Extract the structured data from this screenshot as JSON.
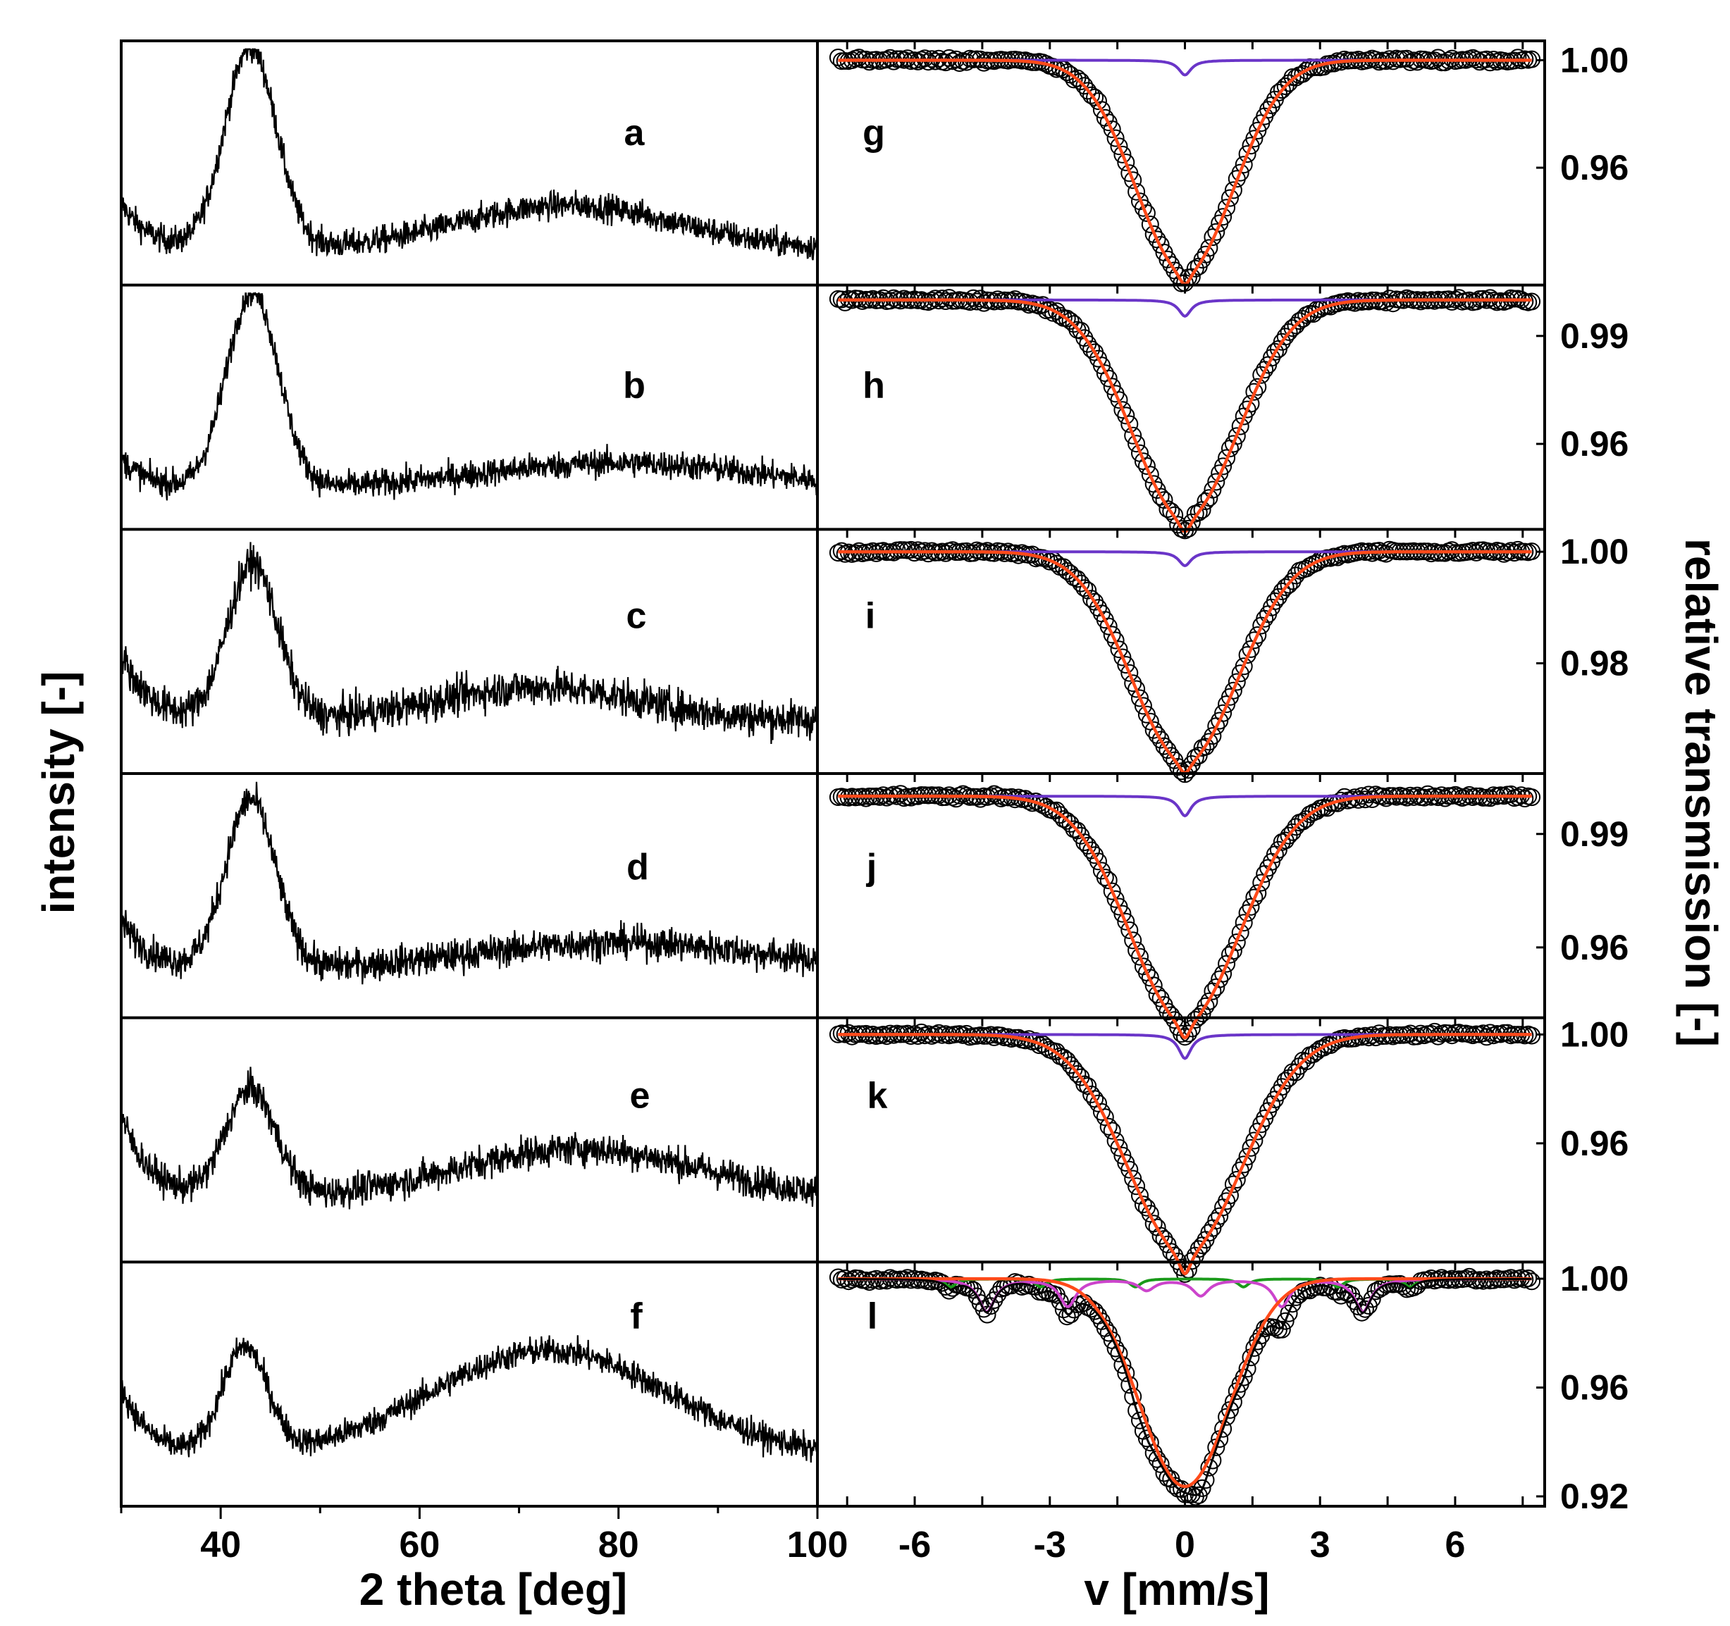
{
  "chart_data": [
    {
      "type": "line",
      "title": "",
      "xlabel": "2 theta [deg]",
      "ylabel": "intensity [-]",
      "xlim": [
        30,
        100
      ],
      "xticks": [
        40,
        60,
        80,
        100
      ],
      "yticks": [],
      "grid": false,
      "legend": "none",
      "series": [
        {
          "name": "a",
          "peak_x": 43,
          "peak_height": 1.0,
          "peak_width": 2.6,
          "start_level": 0.33,
          "base_level": 0.12,
          "bump_x": 75,
          "bump_height": 0.2,
          "bump_width": 11,
          "noise": 0.06
        },
        {
          "name": "b",
          "peak_x": 43.2,
          "peak_height": 1.0,
          "peak_width": 2.6,
          "start_level": 0.28,
          "base_level": 0.14,
          "bump_x": 80,
          "bump_height": 0.12,
          "bump_width": 14,
          "noise": 0.06
        },
        {
          "name": "c",
          "peak_x": 43.2,
          "peak_height": 0.86,
          "peak_width": 2.5,
          "start_level": 0.5,
          "base_level": 0.2,
          "bump_x": 72,
          "bump_height": 0.15,
          "bump_width": 10,
          "noise": 0.08
        },
        {
          "name": "d",
          "peak_x": 43,
          "peak_height": 0.9,
          "peak_width": 2.5,
          "start_level": 0.4,
          "base_level": 0.18,
          "bump_x": 80,
          "bump_height": 0.12,
          "bump_width": 14,
          "noise": 0.07
        },
        {
          "name": "e",
          "peak_x": 43,
          "peak_height": 0.68,
          "peak_width": 2.5,
          "start_level": 0.62,
          "base_level": 0.25,
          "bump_x": 76,
          "bump_height": 0.22,
          "bump_width": 12,
          "noise": 0.07
        },
        {
          "name": "f",
          "peak_x": 42.4,
          "peak_height": 0.62,
          "peak_width": 2.3,
          "start_level": 0.5,
          "base_level": 0.18,
          "bump_x": 73,
          "bump_height": 0.48,
          "bump_width": 12,
          "noise": 0.06
        }
      ]
    },
    {
      "type": "scatter",
      "title": "",
      "xlabel": "v [mm/s]",
      "ylabel": "relative transmission [-]",
      "xlim": [
        -7.8,
        7.8
      ],
      "xticks": [
        -6,
        -3,
        0,
        3,
        6
      ],
      "grid": false,
      "legend": "none",
      "series": [
        {
          "name": "g",
          "ylim": [
            0.92,
            1.003
          ],
          "yticks": [
            0.96,
            1.0
          ],
          "depth": 0.075,
          "width": 1.05,
          "center": 0.0,
          "split": 0.3,
          "sub_depth": 0.0055,
          "sub_width": 0.17
        },
        {
          "name": "h",
          "ylim": [
            0.939,
            1.001
          ],
          "yticks": [
            0.96,
            0.99
          ],
          "depth": 0.058,
          "width": 1.15,
          "center": 0.0,
          "split": 0.3,
          "sub_depth": 0.0045,
          "sub_width": 0.17
        },
        {
          "name": "i",
          "ylim": [
            0.962,
            1.002
          ],
          "yticks": [
            0.98,
            1.0
          ],
          "depth": 0.036,
          "width": 1.15,
          "center": 0.0,
          "split": 0.3,
          "sub_depth": 0.0025,
          "sub_width": 0.17
        },
        {
          "name": "j",
          "ylim": [
            0.944,
            1.003
          ],
          "yticks": [
            0.96,
            0.99
          ],
          "depth": 0.057,
          "width": 1.2,
          "center": 0.0,
          "split": 0.3,
          "sub_depth": 0.0052,
          "sub_width": 0.17
        },
        {
          "name": "k",
          "ylim": [
            0.92,
            1.002
          ],
          "yticks": [
            0.96,
            1.0
          ],
          "depth": 0.077,
          "width": 1.25,
          "center": 0.0,
          "split": 0.3,
          "sub_depth": 0.0088,
          "sub_width": 0.17
        },
        {
          "name": "l",
          "ylim": [
            0.92,
            1.002
          ],
          "yticks": [
            0.92,
            0.96,
            1.0
          ],
          "depth": 0.073,
          "width": 0.95,
          "center": 0.0,
          "split": 0.3,
          "sextet_lines": [
            -4.4,
            -2.6,
            -0.85,
            0.35,
            2.15,
            3.95
          ],
          "sextet_depths": [
            0.012,
            0.01,
            0.004,
            0.006,
            0.01,
            0.012
          ],
          "sextet_width": 0.22,
          "minor_lines": [
            -5.2,
            -3.2,
            -1.1,
            1.3,
            3.4,
            5.0
          ],
          "minor_depth": 0.003
        }
      ]
    }
  ]
}
